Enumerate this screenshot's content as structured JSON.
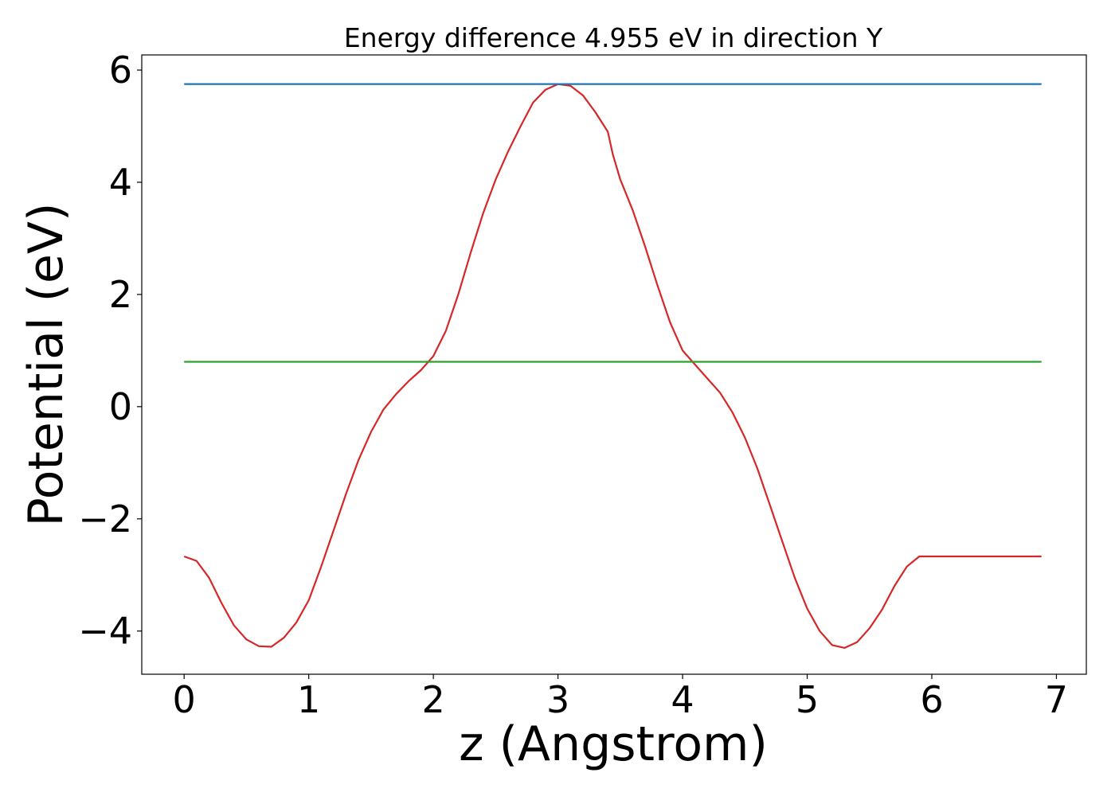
{
  "chart_data": {
    "type": "line",
    "title": "Energy difference 4.955 eV in direction Y",
    "xlabel": "z (Angstrom)",
    "ylabel": "Potential (eV)",
    "xlim": [
      -0.34,
      7.24
    ],
    "ylim": [
      -4.77,
      6.27
    ],
    "xticks": [
      0,
      1,
      2,
      3,
      4,
      5,
      6,
      7
    ],
    "xtick_labels": [
      "0",
      "1",
      "2",
      "3",
      "4",
      "5",
      "6",
      "7"
    ],
    "yticks": [
      -4,
      -2,
      0,
      2,
      4,
      6
    ],
    "ytick_labels": [
      "−4",
      "−2",
      "0",
      "2",
      "4",
      "6"
    ],
    "grid": false,
    "legend": "none",
    "series": [
      {
        "color": "#d62728",
        "x": [
          0,
          0.1,
          0.2,
          0.3,
          0.4,
          0.5,
          0.6,
          0.7,
          0.8,
          0.9,
          1.0,
          1.1,
          1.2,
          1.3,
          1.4,
          1.5,
          1.6,
          1.7,
          1.8,
          1.9,
          2.0,
          2.1,
          2.2,
          2.3,
          2.4,
          2.5,
          2.6,
          2.7,
          2.8,
          2.9,
          3.0,
          3.1,
          3.2,
          3.3,
          3.4,
          3.44,
          3.5,
          3.6,
          3.7,
          3.8,
          3.9,
          4.0,
          4.1,
          4.2,
          4.3,
          4.4,
          4.5,
          4.6,
          4.7,
          4.8,
          4.9,
          5.0,
          5.1,
          5.2,
          5.3,
          5.4,
          5.5,
          5.6,
          5.7,
          5.8,
          5.9,
          6.0,
          6.1,
          6.2,
          6.3,
          6.4,
          6.5,
          6.6,
          6.7,
          6.8,
          6.88
        ],
        "y": [
          -2.67,
          -2.75,
          -3.05,
          -3.5,
          -3.9,
          -4.15,
          -4.27,
          -4.28,
          -4.12,
          -3.85,
          -3.45,
          -2.85,
          -2.2,
          -1.55,
          -0.95,
          -0.45,
          -0.05,
          0.22,
          0.45,
          0.65,
          0.9,
          1.35,
          2.0,
          2.75,
          3.45,
          4.05,
          4.55,
          5.0,
          5.42,
          5.65,
          5.75,
          5.72,
          5.55,
          5.25,
          4.9,
          4.5,
          4.05,
          3.5,
          2.85,
          2.15,
          1.5,
          1.0,
          0.75,
          0.5,
          0.25,
          -0.1,
          -0.55,
          -1.1,
          -1.75,
          -2.4,
          -3.05,
          -3.6,
          -4.0,
          -4.25,
          -4.3,
          -4.2,
          -3.95,
          -3.62,
          -3.2,
          -2.85,
          -2.67,
          -2.67,
          -2.67,
          -2.67,
          -2.67,
          -2.67,
          -2.67,
          -2.67,
          -2.67,
          -2.67,
          -2.67
        ]
      },
      {
        "color": "#1f77b4",
        "x": [
          0,
          6.88
        ],
        "y": [
          5.75,
          5.75
        ]
      },
      {
        "color": "#2ca02c",
        "x": [
          0,
          6.88
        ],
        "y": [
          0.8,
          0.8
        ]
      }
    ]
  }
}
